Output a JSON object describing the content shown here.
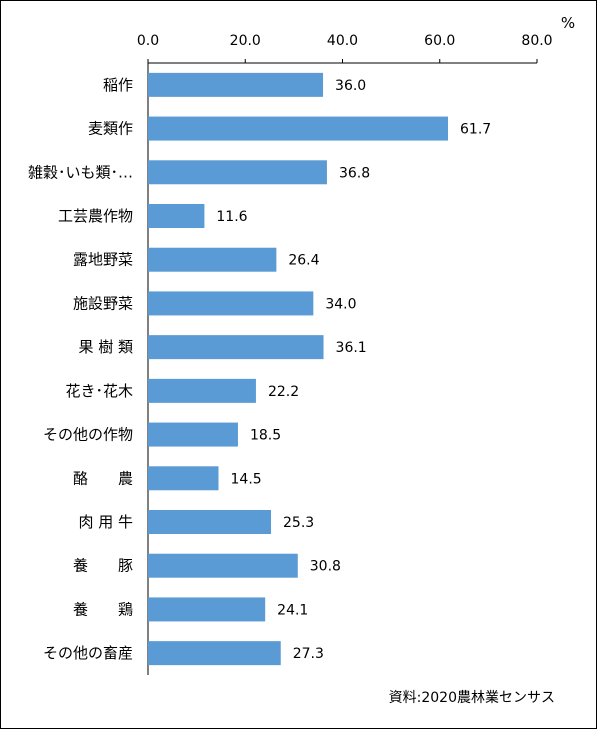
{
  "chart_data": {
    "type": "bar",
    "orientation": "horizontal",
    "unit": "%",
    "xlim": [
      0,
      80
    ],
    "xticks": [
      "0.0",
      "20.0",
      "40.0",
      "60.0",
      "80.0"
    ],
    "categories": [
      "稲作",
      "麦類作",
      "雑穀･いも類･…",
      "工芸農作物",
      "露地野菜",
      "施設野菜",
      "果 樹 類",
      "花き･花木",
      "その他の作物",
      "酪　　農",
      "肉 用 牛",
      "養　　豚",
      "養　　鶏",
      "その他の畜産"
    ],
    "values": [
      36.0,
      61.7,
      36.8,
      11.6,
      26.4,
      34.0,
      36.1,
      22.2,
      18.5,
      14.5,
      25.3,
      30.8,
      24.1,
      27.3
    ],
    "value_labels": [
      "36.0",
      "61.7",
      "36.8",
      "11.6",
      "26.4",
      "34.0",
      "36.1",
      "22.2",
      "18.5",
      "14.5",
      "25.3",
      "30.8",
      "24.1",
      "27.3"
    ],
    "bar_color": "#5b9bd5",
    "grid": false,
    "axis_position": "top",
    "source_note": "資料:2020農林業センサス"
  }
}
